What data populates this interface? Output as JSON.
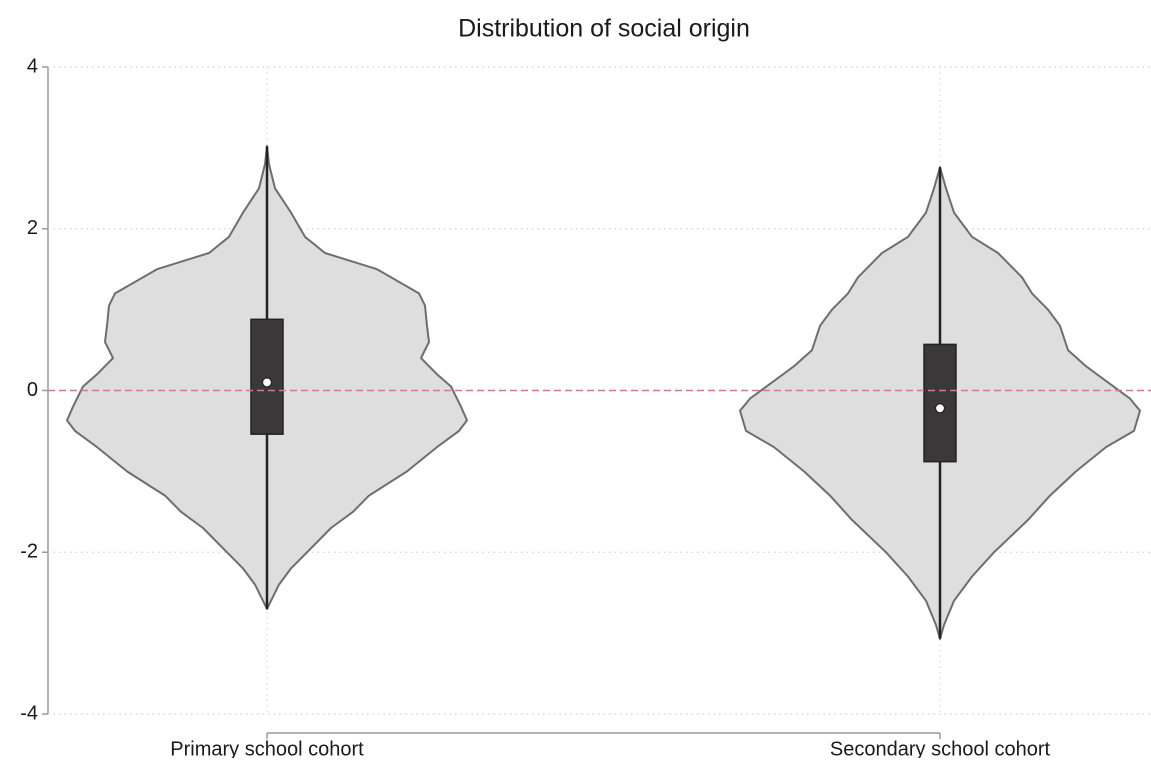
{
  "chart_data": {
    "type": "violin",
    "title": "Distribution of social origin",
    "categories": [
      "Primary school cohort",
      "Secondary school cohort"
    ],
    "ylim": [
      -4,
      4
    ],
    "yticks": [
      -4,
      -2,
      0,
      2,
      4
    ],
    "grid": true,
    "reference_line": 0,
    "reference_color": "#d2779f",
    "fill_color": "#dedede",
    "outline_color": "#6e6e6e",
    "box_color": "#3a3838",
    "groups": [
      {
        "q1": -0.54,
        "median": 0.1,
        "q3": 0.88,
        "whisker_low": -2.7,
        "whisker_high": 3.02,
        "density_y": [
          3.02,
          2.8,
          2.5,
          2.2,
          1.9,
          1.7,
          1.5,
          1.2,
          1.05,
          0.8,
          0.6,
          0.4,
          0.2,
          0.05,
          -0.2,
          -0.37,
          -0.5,
          -0.7,
          -1.0,
          -1.3,
          -1.5,
          -1.7,
          -2.0,
          -2.2,
          -2.4,
          -2.6,
          -2.7
        ],
        "density": [
          0,
          0.01,
          0.04,
          0.12,
          0.19,
          0.29,
          0.55,
          0.76,
          0.79,
          0.8,
          0.81,
          0.77,
          0.85,
          0.92,
          0.97,
          1.0,
          0.96,
          0.85,
          0.7,
          0.51,
          0.43,
          0.32,
          0.2,
          0.12,
          0.06,
          0.02,
          0
        ]
      },
      {
        "q1": -0.88,
        "median": -0.22,
        "q3": 0.57,
        "whisker_low": -3.07,
        "whisker_high": 2.76,
        "density_y": [
          2.76,
          2.5,
          2.2,
          1.9,
          1.7,
          1.4,
          1.2,
          1.0,
          0.8,
          0.5,
          0.3,
          0.1,
          -0.1,
          -0.25,
          -0.5,
          -0.7,
          -1.0,
          -1.3,
          -1.6,
          -2.0,
          -2.3,
          -2.6,
          -2.9,
          -3.07
        ],
        "density": [
          0,
          0.03,
          0.07,
          0.16,
          0.29,
          0.41,
          0.46,
          0.54,
          0.6,
          0.64,
          0.73,
          0.84,
          0.95,
          1.0,
          0.97,
          0.83,
          0.68,
          0.55,
          0.44,
          0.27,
          0.16,
          0.07,
          0.02,
          0
        ]
      }
    ]
  }
}
